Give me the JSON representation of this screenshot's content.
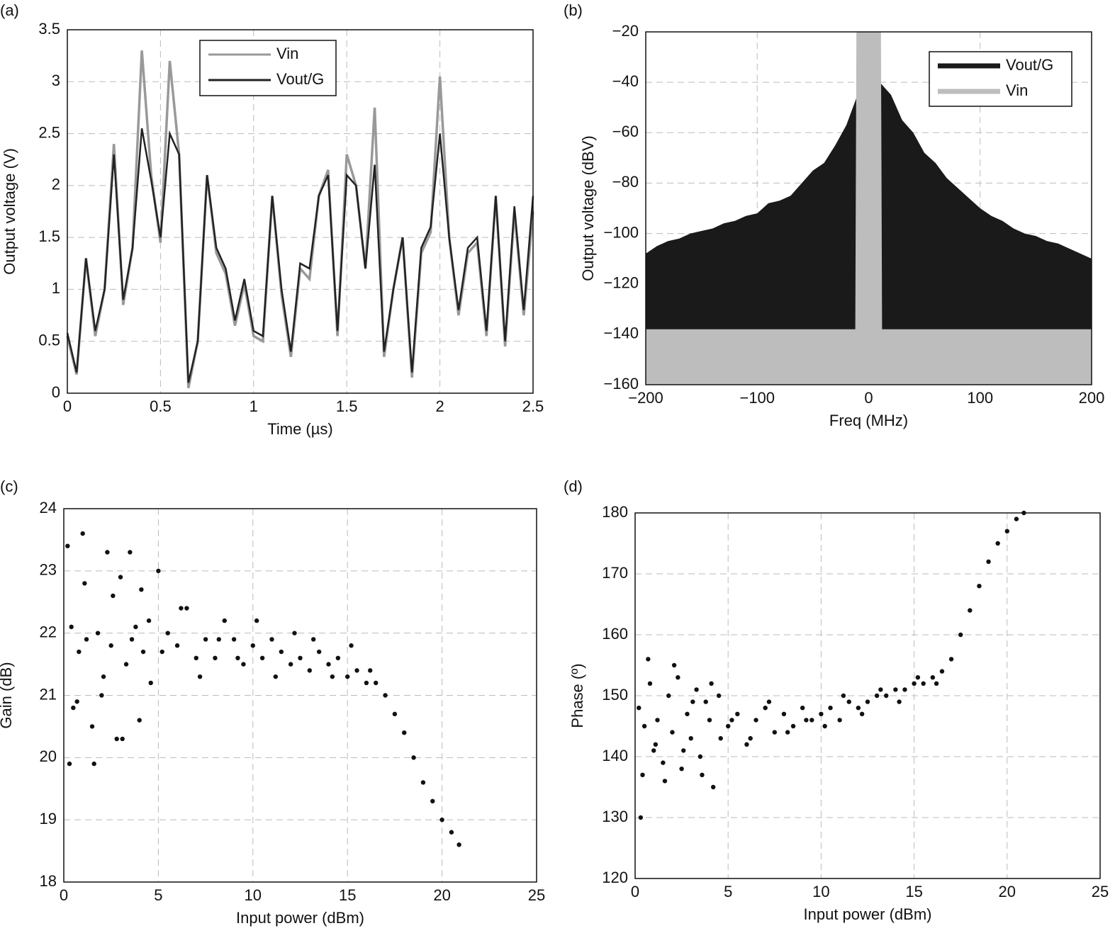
{
  "chart_data": [
    {
      "type": "line",
      "title": "(a)",
      "x_label": "Time (µs)",
      "y_label": "Output voltage (V)",
      "x": [
        0,
        0.05,
        0.1,
        0.15,
        0.2,
        0.25,
        0.3,
        0.35,
        0.4,
        0.45,
        0.5,
        0.55,
        0.6,
        0.65,
        0.7,
        0.75,
        0.8,
        0.85,
        0.9,
        0.95,
        1.0,
        1.05,
        1.1,
        1.15,
        1.2,
        1.25,
        1.3,
        1.35,
        1.4,
        1.45,
        1.5,
        1.55,
        1.6,
        1.65,
        1.7,
        1.75,
        1.8,
        1.85,
        1.9,
        1.95,
        2.0,
        2.05,
        2.1,
        2.15,
        2.2,
        2.25,
        2.3,
        2.35,
        2.4,
        2.45,
        2.5
      ],
      "series": [
        {
          "name": "Vin",
          "color": "#999999",
          "values": [
            0.55,
            0.18,
            1.3,
            0.55,
            1.0,
            2.4,
            0.85,
            1.4,
            3.3,
            2.1,
            1.45,
            3.2,
            2.3,
            0.05,
            0.5,
            2.1,
            1.35,
            1.15,
            0.65,
            1.05,
            0.55,
            0.5,
            1.9,
            0.95,
            0.35,
            1.2,
            1.1,
            1.9,
            2.15,
            0.55,
            2.3,
            2.0,
            1.2,
            2.75,
            0.35,
            1.0,
            1.5,
            0.15,
            1.35,
            1.55,
            3.05,
            1.5,
            0.75,
            1.35,
            1.45,
            0.55,
            1.9,
            0.45,
            1.75,
            0.75,
            1.75
          ]
        },
        {
          "name": "Vout/G",
          "color": "#222222",
          "values": [
            0.58,
            0.2,
            1.3,
            0.6,
            1.0,
            2.3,
            0.9,
            1.4,
            2.55,
            2.05,
            1.5,
            2.5,
            2.3,
            0.1,
            0.5,
            2.1,
            1.4,
            1.2,
            0.7,
            1.1,
            0.6,
            0.55,
            1.9,
            1.0,
            0.4,
            1.25,
            1.2,
            1.9,
            2.1,
            0.6,
            2.1,
            2.0,
            1.2,
            2.2,
            0.4,
            1.0,
            1.5,
            0.2,
            1.4,
            1.6,
            2.5,
            1.5,
            0.8,
            1.4,
            1.5,
            0.6,
            1.9,
            0.5,
            1.8,
            0.8,
            1.9
          ]
        }
      ],
      "xlim": [
        0,
        2.5
      ],
      "xticks": [
        0,
        0.5,
        1,
        1.5,
        2,
        2.5
      ],
      "ylim": [
        0,
        3.5
      ],
      "yticks": [
        0,
        0.5,
        1,
        1.5,
        2,
        2.5,
        3,
        3.5
      ],
      "grid": true
    },
    {
      "type": "area",
      "title": "(b)",
      "x_label": "Freq (MHz)",
      "y_label": "Output voltage (dBV)",
      "series": [
        {
          "name": "Vout/G",
          "color": "#1a1a1a",
          "x": [
            -200,
            -190,
            -180,
            -170,
            -160,
            -150,
            -140,
            -130,
            -120,
            -110,
            -100,
            -90,
            -80,
            -70,
            -60,
            -50,
            -40,
            -30,
            -20,
            -10,
            0,
            10,
            20,
            30,
            40,
            50,
            60,
            70,
            80,
            90,
            100,
            110,
            120,
            130,
            140,
            150,
            160,
            170,
            180,
            190,
            200
          ],
          "values": [
            -108,
            -105,
            -103,
            -102,
            -100,
            -99,
            -98,
            -96,
            -95,
            -93,
            -92,
            -88,
            -87,
            -85,
            -80,
            -75,
            -72,
            -65,
            -57,
            -45,
            -20,
            -40,
            -45,
            -55,
            -60,
            -68,
            -72,
            -78,
            -82,
            -86,
            -90,
            -93,
            -95,
            -98,
            -100,
            -101,
            -103,
            -104,
            -106,
            -108,
            -110
          ]
        },
        {
          "name": "Vin",
          "color": "#bdbdbd",
          "x": [
            -200,
            -12,
            -11,
            11,
            12,
            200
          ],
          "values": [
            -138,
            -138,
            -20,
            -20,
            -138,
            -138
          ]
        }
      ],
      "xlim": [
        -200,
        200
      ],
      "xticks": [
        {
          "value": -200,
          "label": "−200"
        },
        {
          "value": -100,
          "label": "−100"
        },
        0,
        100,
        200
      ],
      "ylim": [
        -160,
        -20
      ],
      "yticks": [
        {
          "value": -160,
          "label": "−160"
        },
        {
          "value": -140,
          "label": "−140"
        },
        {
          "value": -120,
          "label": "−120"
        },
        {
          "value": -100,
          "label": "−100"
        },
        {
          "value": -80,
          "label": "−80"
        },
        {
          "value": -60,
          "label": "−60"
        },
        {
          "value": -40,
          "label": "−40"
        },
        {
          "value": -20,
          "label": "−20"
        }
      ],
      "grid": true
    },
    {
      "type": "scatter",
      "title": "(c)",
      "x_label": "Input power (dBm)",
      "y_label": "Gain (dB)",
      "color": "#111111",
      "x": [
        0.2,
        0.4,
        0.5,
        0.8,
        1.0,
        1.2,
        1.5,
        1.8,
        2.0,
        2.3,
        2.5,
        2.8,
        3.0,
        3.3,
        3.5,
        3.8,
        4.0,
        4.2,
        4.5,
        5.0,
        5.5,
        6.0,
        6.5,
        7.0,
        7.5,
        8.0,
        8.5,
        9.0,
        9.5,
        10,
        10.5,
        11,
        11.5,
        12,
        12.5,
        13,
        13.5,
        14,
        14.5,
        15,
        15.5,
        16,
        16.5,
        17,
        17.5,
        18,
        18.5,
        19,
        19.5,
        20,
        20.5,
        20.9,
        0.3,
        0.7,
        1.1,
        1.6,
        2.1,
        2.6,
        3.1,
        3.6,
        4.1,
        4.6,
        5.2,
        6.2,
        7.2,
        8.2,
        9.2,
        10.2,
        11.2,
        12.2,
        13.2,
        14.2,
        15.2,
        16.2
      ],
      "values": [
        23.4,
        22.1,
        20.8,
        21.7,
        23.6,
        21.9,
        20.5,
        22.0,
        21.0,
        23.3,
        21.8,
        20.3,
        22.9,
        21.5,
        23.3,
        22.1,
        20.6,
        21.7,
        22.2,
        23.0,
        22.0,
        21.8,
        22.4,
        21.6,
        21.9,
        21.6,
        22.2,
        21.9,
        21.5,
        21.8,
        21.6,
        21.9,
        21.7,
        21.5,
        21.6,
        21.4,
        21.7,
        21.5,
        21.6,
        21.3,
        21.4,
        21.2,
        21.2,
        21.0,
        20.7,
        20.4,
        20.0,
        19.6,
        19.3,
        19.0,
        18.8,
        18.6,
        19.9,
        20.9,
        22.8,
        19.9,
        21.3,
        22.6,
        20.3,
        21.9,
        22.7,
        21.2,
        21.7,
        22.4,
        21.3,
        21.9,
        21.6,
        22.2,
        21.3,
        22.0,
        21.9,
        21.3,
        21.8,
        21.4
      ],
      "xlim": [
        0,
        25
      ],
      "xticks": [
        0,
        5,
        10,
        15,
        20,
        25
      ],
      "ylim": [
        18,
        24
      ],
      "yticks": [
        18,
        19,
        20,
        21,
        22,
        23,
        24
      ],
      "grid": true
    },
    {
      "type": "scatter",
      "title": "(d)",
      "x_label": "Input power (dBm)",
      "y_label": "Phase (º)",
      "color": "#111111",
      "x": [
        0.2,
        0.4,
        0.5,
        0.8,
        1.0,
        1.2,
        1.5,
        1.8,
        2.0,
        2.3,
        2.5,
        2.8,
        3.0,
        3.3,
        3.5,
        3.8,
        4.0,
        4.2,
        4.5,
        5.0,
        5.5,
        6.0,
        6.5,
        7.0,
        7.5,
        8.0,
        8.5,
        9.0,
        9.5,
        10,
        10.5,
        11,
        11.5,
        12,
        12.5,
        13,
        13.5,
        14,
        14.5,
        15,
        15.5,
        16,
        16.5,
        17,
        17.5,
        18,
        18.5,
        19,
        19.5,
        20,
        20.5,
        20.9,
        0.3,
        0.7,
        1.1,
        1.6,
        2.1,
        2.6,
        3.1,
        3.6,
        4.1,
        4.6,
        5.2,
        6.2,
        7.2,
        8.2,
        9.2,
        10.2,
        11.2,
        12.2,
        13.2,
        14.2,
        15.2,
        16.2
      ],
      "values": [
        148,
        137,
        145,
        152,
        141,
        146,
        139,
        150,
        144,
        153,
        138,
        147,
        143,
        151,
        140,
        149,
        146,
        135,
        150,
        145,
        147,
        142,
        146,
        148,
        144,
        147,
        145,
        148,
        146,
        147,
        148,
        146,
        149,
        148,
        149,
        150,
        150,
        151,
        151,
        152,
        152,
        153,
        154,
        156,
        160,
        164,
        168,
        172,
        175,
        177,
        179,
        180,
        130,
        156,
        142,
        136,
        155,
        141,
        149,
        137,
        152,
        143,
        146,
        143,
        149,
        144,
        146,
        145,
        150,
        147,
        151,
        149,
        153,
        152
      ],
      "xlim": [
        0,
        25
      ],
      "xticks": [
        0,
        5,
        10,
        15,
        20,
        25
      ],
      "ylim": [
        120,
        180
      ],
      "yticks": [
        120,
        130,
        140,
        150,
        160,
        170,
        180
      ],
      "grid": true
    }
  ]
}
